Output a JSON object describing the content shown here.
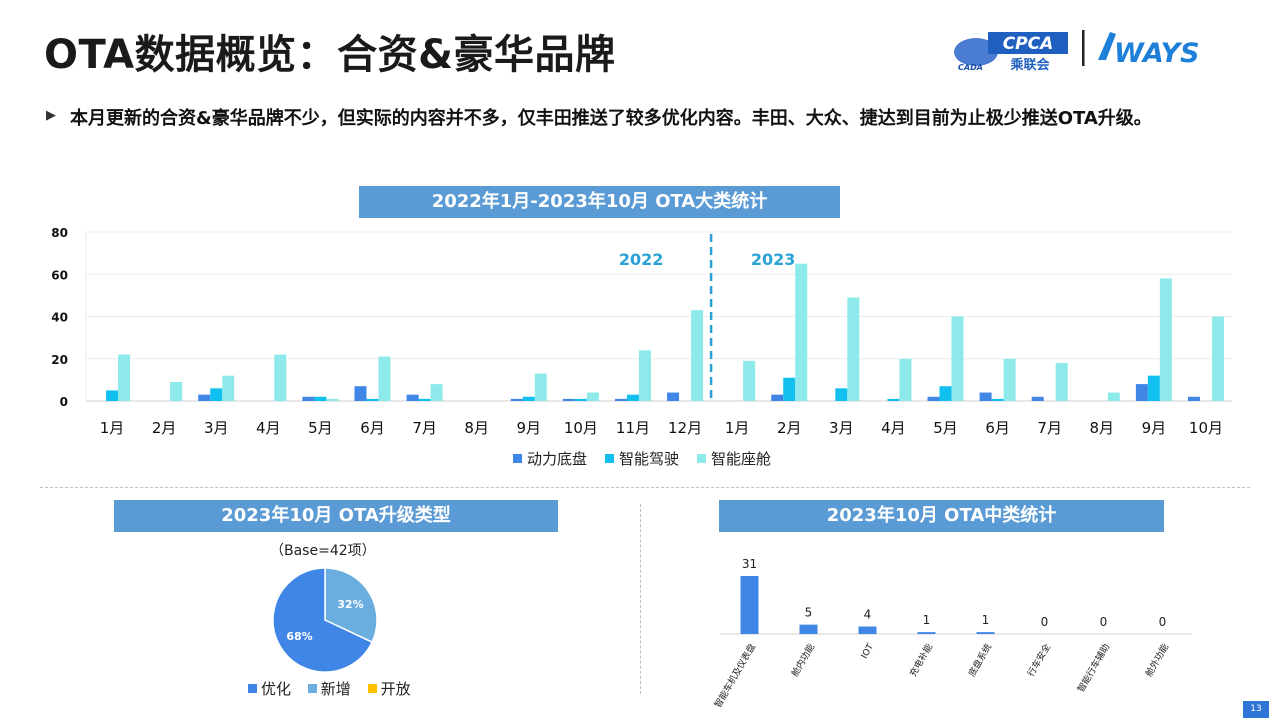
{
  "header": {
    "title": "OTA数据概览：合资&豪华品牌",
    "logo_cpca": "CPCA",
    "logo_cpca_sub": "乘联会",
    "logo_cada": "CADA",
    "logo_ways": "WAYS"
  },
  "summary": {
    "marker": "▶",
    "text": "本月更新的合资&豪华品牌不少，但实际的内容并不多，仅丰田推送了较多优化内容。丰田、大众、捷达到目前为止极少推送OTA升级。"
  },
  "colors": {
    "banner": "#5b9bd5",
    "power": "#3f86e6",
    "adas": "#12c0ef",
    "cabin": "#8eeaea",
    "optimize": "#3f86e6",
    "new": "#6aaee0",
    "open": "#ffc000",
    "divider": "#2aa2d6"
  },
  "chart_data": [
    {
      "type": "bar",
      "title": "2022年1月-2023年10月 OTA大类统计",
      "categories": [
        "1月",
        "2月",
        "3月",
        "4月",
        "5月",
        "6月",
        "7月",
        "8月",
        "9月",
        "10月",
        "11月",
        "12月",
        "1月",
        "2月",
        "3月",
        "4月",
        "5月",
        "6月",
        "7月",
        "8月",
        "9月",
        "10月"
      ],
      "series": [
        {
          "name": "动力底盘",
          "values": [
            0,
            0,
            3,
            0,
            2,
            7,
            3,
            0,
            1,
            1,
            1,
            4,
            0,
            3,
            0,
            0,
            2,
            4,
            2,
            0,
            8,
            2
          ]
        },
        {
          "name": "智能驾驶",
          "values": [
            5,
            0,
            6,
            0,
            2,
            1,
            1,
            0,
            2,
            1,
            3,
            0,
            0,
            11,
            6,
            1,
            7,
            1,
            0,
            0,
            12,
            0
          ]
        },
        {
          "name": "智能座舱",
          "values": [
            22,
            9,
            12,
            22,
            1,
            21,
            8,
            0,
            13,
            4,
            24,
            43,
            19,
            65,
            49,
            20,
            40,
            20,
            18,
            4,
            58,
            40
          ]
        }
      ],
      "ylim": [
        0,
        80
      ],
      "yticks": [
        "0",
        "20",
        "40",
        "60",
        "80"
      ],
      "year_labels": [
        "2022",
        "2023"
      ],
      "year_split_after_index": 11,
      "legend_position": "bottom",
      "grid": true
    },
    {
      "type": "pie",
      "title": "2023年10月 OTA升级类型",
      "base_note": "（Base=42项）",
      "slices": [
        {
          "name": "优化",
          "value": 68,
          "label": "68%"
        },
        {
          "name": "新增",
          "value": 32,
          "label": "32%"
        },
        {
          "name": "开放",
          "value": 0,
          "label": ""
        }
      ],
      "legend_position": "bottom"
    },
    {
      "type": "bar",
      "title": "2023年10月 OTA中类统计",
      "categories": [
        "智能车机及仪表盘",
        "舱内功能",
        "IOT",
        "充电补能",
        "底盘系统",
        "行车安全",
        "智能行车辅助",
        "舱外功能"
      ],
      "values": [
        31,
        5,
        4,
        1,
        1,
        0,
        0,
        0
      ],
      "labels": [
        "31",
        "5",
        "4",
        "1",
        "1",
        "0",
        "0",
        "0"
      ]
    }
  ],
  "footer": {
    "page": "13"
  }
}
